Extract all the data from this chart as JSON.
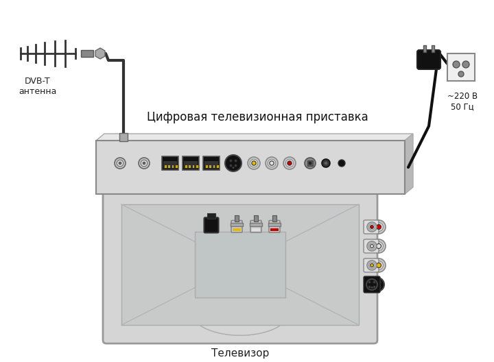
{
  "bg_color": "#ffffff",
  "title_text": "Цифровая телевизионная приставка",
  "antenna_label": "DVB-T\nантенна",
  "tv_label": "Телевизор",
  "power_label": "~220 В\n50 Гц",
  "box_color": "#d8d8d8",
  "box_edge_color": "#888888",
  "tv_color": "#d8d8d8",
  "tv_edge_color": "#888888"
}
